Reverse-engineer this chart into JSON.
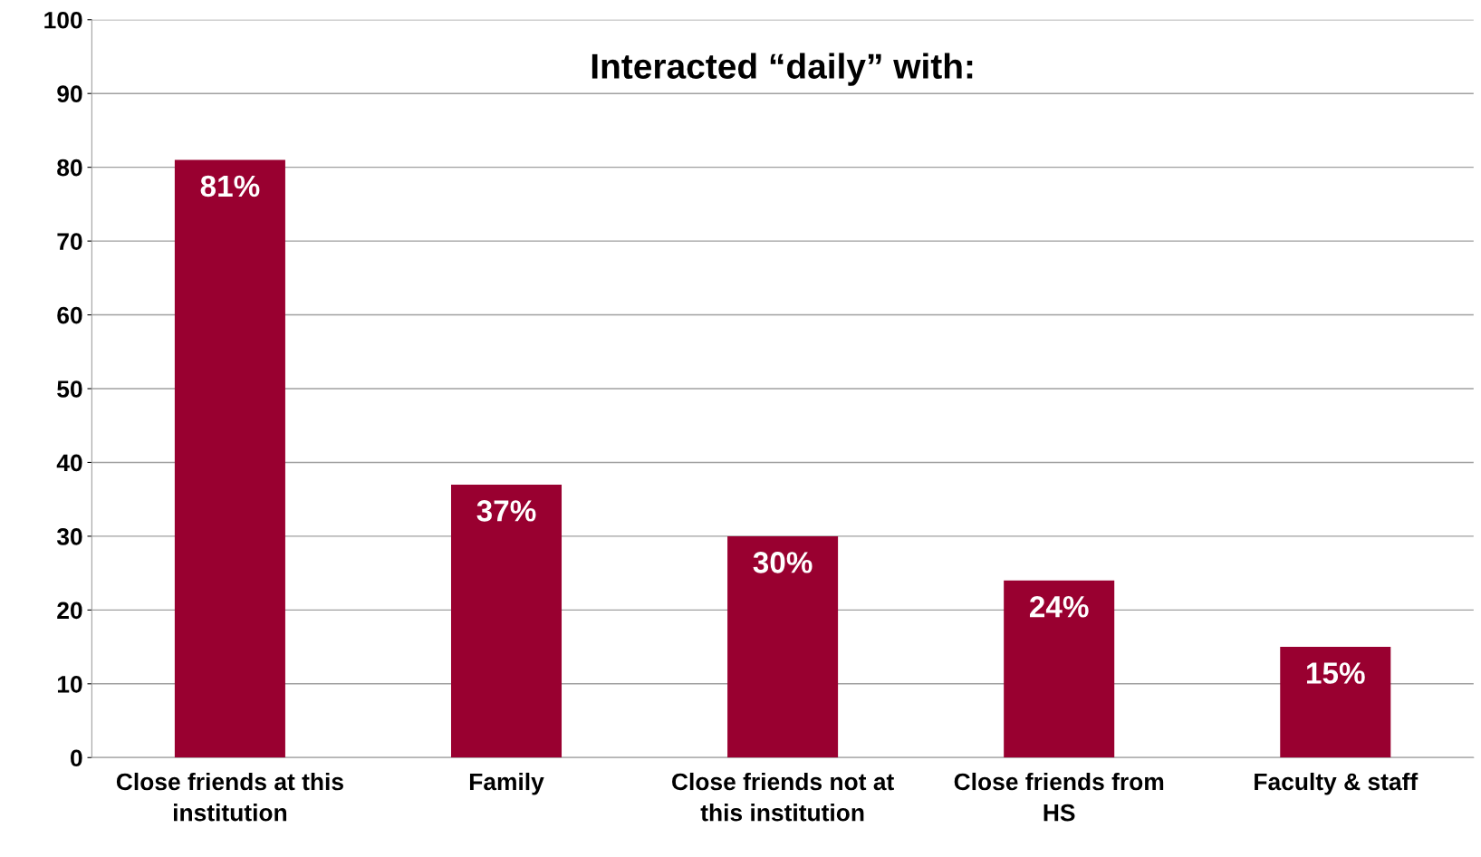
{
  "chart_data": {
    "type": "bar",
    "title": "Interacted “daily” with:",
    "categories": [
      "Close friends at this\ninstitution",
      "Family",
      "Close friends not at\nthis institution",
      "Close friends from\nHS",
      "Faculty & staff"
    ],
    "values": [
      81,
      37,
      30,
      24,
      15
    ],
    "value_labels": [
      "81%",
      "37%",
      "30%",
      "24%",
      "15%"
    ],
    "color": "#990030",
    "ylim": [
      0,
      100
    ],
    "yticks": [
      0,
      10,
      20,
      30,
      40,
      50,
      60,
      70,
      80,
      90,
      100
    ],
    "grid": "y"
  }
}
